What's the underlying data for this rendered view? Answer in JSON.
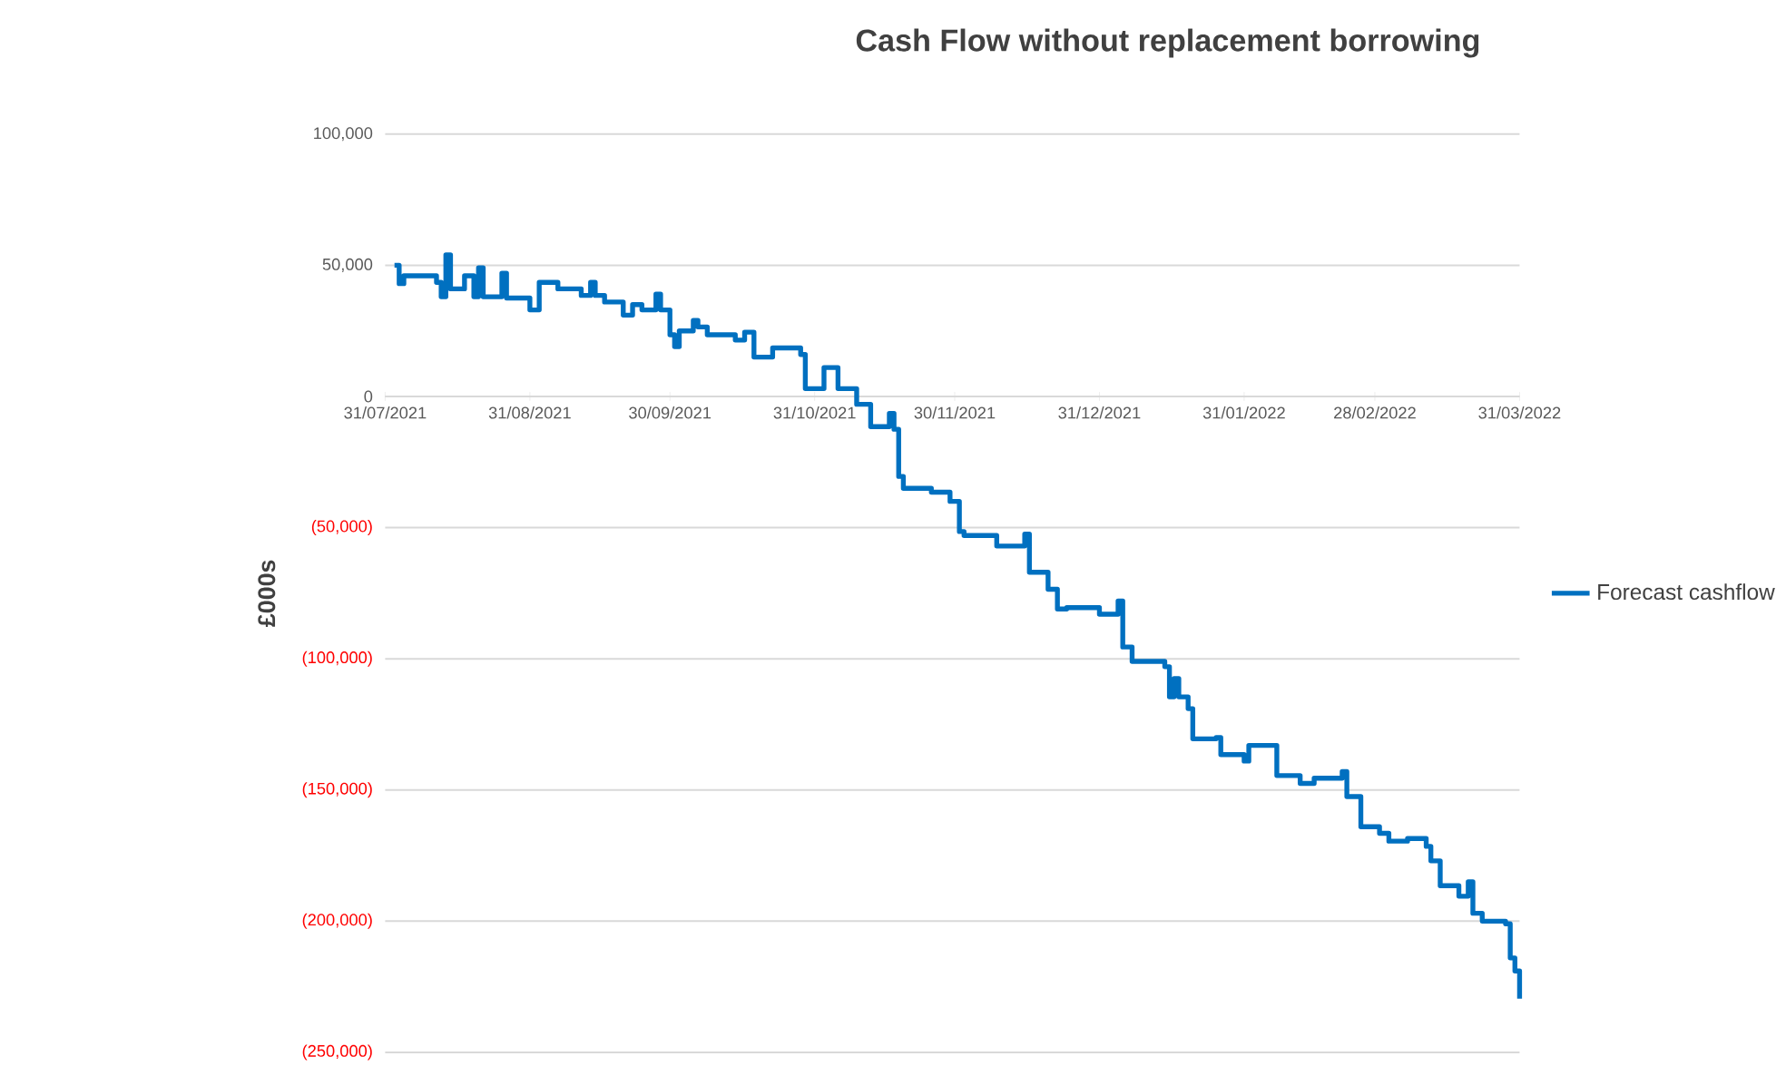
{
  "chart_data": {
    "type": "step",
    "title": "Cash Flow without replacement borrowing",
    "ylabel": "£000s",
    "xlim": [
      "2021-07-31",
      "2022-03-31"
    ],
    "xticks": [
      {
        "value": "2021-07-31",
        "label": "31/07/2021"
      },
      {
        "value": "2021-08-31",
        "label": "31/08/2021"
      },
      {
        "value": "2021-09-30",
        "label": "30/09/2021"
      },
      {
        "value": "2021-10-31",
        "label": "31/10/2021"
      },
      {
        "value": "2021-11-30",
        "label": "30/11/2021"
      },
      {
        "value": "2021-12-31",
        "label": "31/12/2021"
      },
      {
        "value": "2022-01-31",
        "label": "31/01/2022"
      },
      {
        "value": "2022-02-28",
        "label": "28/02/2022"
      },
      {
        "value": "2022-03-31",
        "label": "31/03/2022"
      }
    ],
    "ylim": [
      -250000,
      100000
    ],
    "yticks": [
      {
        "value": -250000,
        "label": "(250,000)"
      },
      {
        "value": -200000,
        "label": "(200,000)"
      },
      {
        "value": -150000,
        "label": "(150,000)"
      },
      {
        "value": -100000,
        "label": "(100,000)"
      },
      {
        "value": -50000,
        "label": "(50,000)"
      },
      0,
      {
        "value": 50000,
        "label": "50,000"
      },
      {
        "value": 100000,
        "label": "100,000"
      }
    ],
    "grid": "y",
    "legend": "right",
    "marker": "none",
    "line_style": "solid",
    "x": [
      "2021-08-02",
      "2021-08-03",
      "2021-08-04",
      "2021-08-11",
      "2021-08-12",
      "2021-08-13",
      "2021-08-14",
      "2021-08-17",
      "2021-08-19",
      "2021-08-20",
      "2021-08-21",
      "2021-08-25",
      "2021-08-26",
      "2021-08-31",
      "2021-09-02",
      "2021-09-06",
      "2021-09-11",
      "2021-09-13",
      "2021-09-14",
      "2021-09-16",
      "2021-09-20",
      "2021-09-22",
      "2021-09-24",
      "2021-09-27",
      "2021-09-28",
      "2021-09-30",
      "2021-10-01",
      "2021-10-02",
      "2021-10-05",
      "2021-10-06",
      "2021-10-08",
      "2021-10-14",
      "2021-10-16",
      "2021-10-18",
      "2021-10-22",
      "2021-10-28",
      "2021-10-29",
      "2021-11-02",
      "2021-11-05",
      "2021-11-09",
      "2021-11-12",
      "2021-11-16",
      "2021-11-17",
      "2021-11-18",
      "2021-11-19",
      "2021-11-25",
      "2021-11-29",
      "2021-12-01",
      "2021-12-02",
      "2021-12-09",
      "2021-12-15",
      "2021-12-16",
      "2021-12-20",
      "2021-12-22",
      "2021-12-24",
      "2021-12-31",
      "2022-01-04",
      "2022-01-05",
      "2022-01-07",
      "2022-01-14",
      "2022-01-15",
      "2022-01-16",
      "2022-01-17",
      "2022-01-19",
      "2022-01-20",
      "2022-01-25",
      "2022-01-26",
      "2022-01-31",
      "2022-02-01",
      "2022-02-07",
      "2022-02-12",
      "2022-02-15",
      "2022-02-21",
      "2022-02-22",
      "2022-02-25",
      "2022-03-01",
      "2022-03-03",
      "2022-03-07",
      "2022-03-11",
      "2022-03-12",
      "2022-03-14",
      "2022-03-18",
      "2022-03-20",
      "2022-03-21",
      "2022-03-23",
      "2022-03-28",
      "2022-03-29",
      "2022-03-30",
      "2022-03-31"
    ],
    "series": [
      {
        "name": "Forecast cashflow",
        "color": "#0070c0",
        "values": [
          50000,
          43000,
          46000,
          43500,
          38000,
          54000,
          41000,
          46000,
          38000,
          49000,
          38000,
          47000,
          37500,
          33000,
          43500,
          41000,
          38500,
          43500,
          38500,
          36000,
          31000,
          35000,
          33000,
          39000,
          33000,
          23500,
          19000,
          25000,
          29000,
          26500,
          23500,
          21500,
          24500,
          15000,
          18500,
          16000,
          3000,
          11000,
          3000,
          -3000,
          -11500,
          -6500,
          -12500,
          -30500,
          -35000,
          -36500,
          -40000,
          -51500,
          -53000,
          -57000,
          -52500,
          -67000,
          -73500,
          -81000,
          -80500,
          -83000,
          -78000,
          -95500,
          -101000,
          -103000,
          -114500,
          -107500,
          -114500,
          -119000,
          -130500,
          -130000,
          -136500,
          -139000,
          -133000,
          -144500,
          -147500,
          -145500,
          -143000,
          -152500,
          -164000,
          -166500,
          -169500,
          -168500,
          -171500,
          -177000,
          -186500,
          -190500,
          -185000,
          -197000,
          -200000,
          -201000,
          -214000,
          -219000,
          -229500
        ]
      }
    ]
  }
}
